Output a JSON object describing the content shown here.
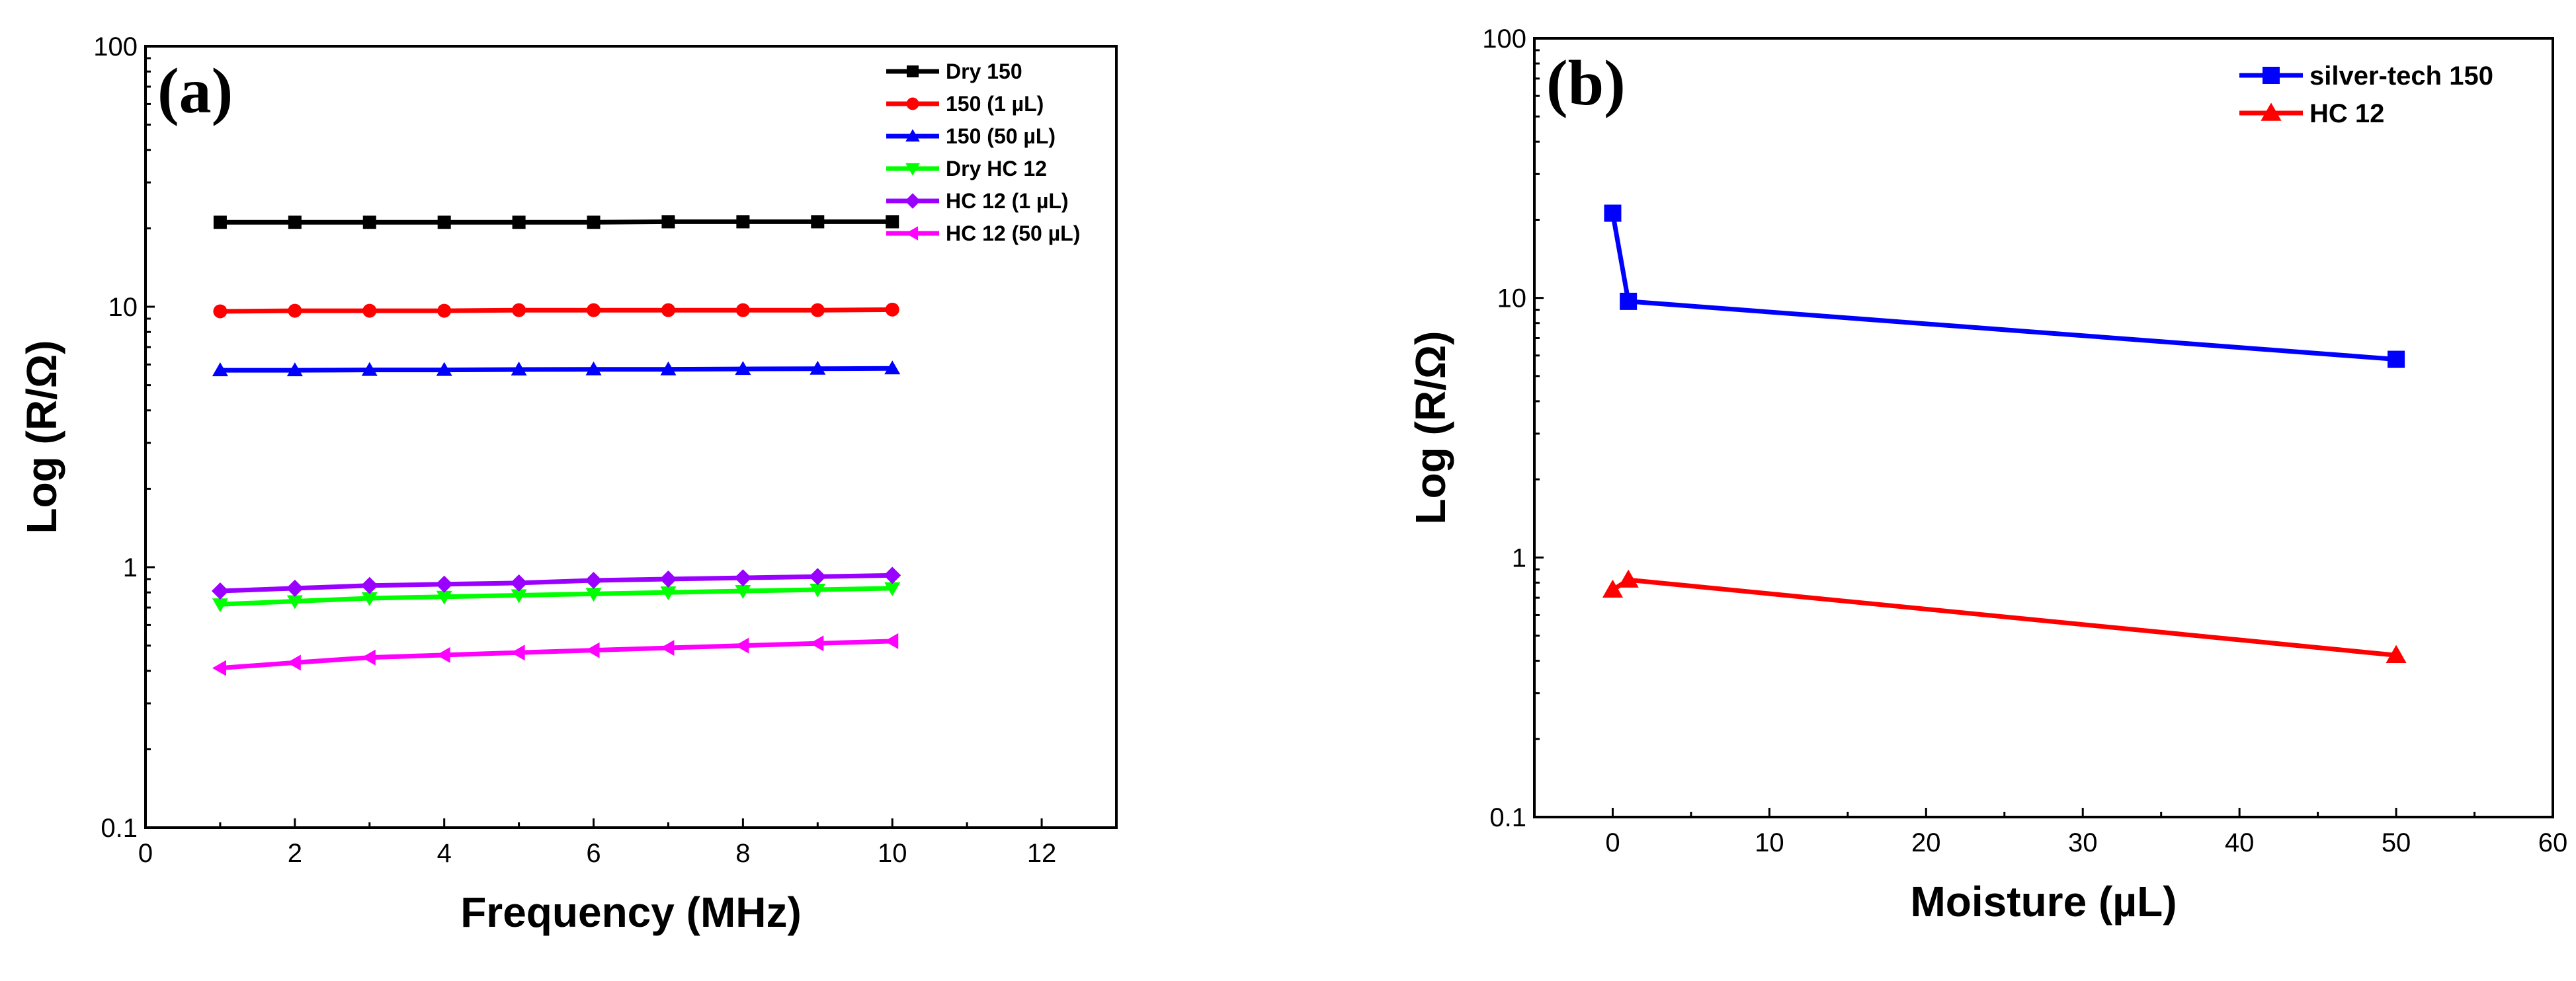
{
  "chart_data": [
    {
      "panel_label": "(a)",
      "type": "line",
      "xlabel": "Frequency (MHz)",
      "ylabel": "Log (R/Ω)",
      "xlim": [
        0,
        13
      ],
      "xticks": [
        0,
        2,
        4,
        6,
        8,
        10,
        12
      ],
      "xtick_labels": [
        "0",
        "2",
        "4",
        "6",
        "8",
        "10",
        "12"
      ],
      "yscale": "log",
      "ylim": [
        0.1,
        100
      ],
      "yticks": [
        0.1,
        1,
        10,
        100
      ],
      "ytick_labels": [
        "0.1",
        "1",
        "10",
        "100"
      ],
      "legend_position": "top-right",
      "x": [
        1,
        2,
        3,
        4,
        5,
        6,
        7,
        8,
        9,
        10
      ],
      "series": [
        {
          "name": "Dry 150",
          "color": "#000000",
          "marker": "square",
          "values": [
            21.1,
            21.1,
            21.1,
            21.1,
            21.1,
            21.1,
            21.2,
            21.2,
            21.2,
            21.2
          ]
        },
        {
          "name": "150 (1 µL)",
          "color": "#ff0000",
          "marker": "circle",
          "values": [
            9.6,
            9.65,
            9.65,
            9.65,
            9.7,
            9.7,
            9.7,
            9.7,
            9.7,
            9.75
          ]
        },
        {
          "name": "150 (50 µL)",
          "color": "#0000ff",
          "marker": "triangle-up",
          "values": [
            5.7,
            5.7,
            5.72,
            5.72,
            5.74,
            5.75,
            5.75,
            5.77,
            5.78,
            5.8
          ]
        },
        {
          "name": "Dry HC 12",
          "color": "#00ff00",
          "marker": "triangle-down",
          "values": [
            0.72,
            0.74,
            0.76,
            0.77,
            0.78,
            0.79,
            0.8,
            0.81,
            0.82,
            0.83
          ]
        },
        {
          "name": "HC 12 (1 µL)",
          "color": "#9900ff",
          "marker": "diamond",
          "values": [
            0.81,
            0.83,
            0.85,
            0.86,
            0.87,
            0.89,
            0.9,
            0.91,
            0.92,
            0.93
          ]
        },
        {
          "name": "HC 12 (50 µL)",
          "color": "#ff00ff",
          "marker": "triangle-left",
          "values": [
            0.41,
            0.43,
            0.45,
            0.46,
            0.47,
            0.48,
            0.49,
            0.5,
            0.51,
            0.52
          ]
        }
      ]
    },
    {
      "panel_label": "(b)",
      "type": "line",
      "xlabel": "Moisture (µL)",
      "ylabel": "Log (R/Ω)",
      "xlim": [
        -5,
        60
      ],
      "xticks": [
        0,
        10,
        20,
        30,
        40,
        50,
        60
      ],
      "xtick_labels": [
        "0",
        "10",
        "20",
        "30",
        "40",
        "50",
        "60"
      ],
      "yscale": "log",
      "ylim": [
        0.1,
        100
      ],
      "yticks": [
        0.1,
        1,
        10,
        100
      ],
      "ytick_labels": [
        "0.1",
        "1",
        "10",
        "100"
      ],
      "legend_position": "top-right",
      "series": [
        {
          "name": "silver-tech 150",
          "color": "#0000ff",
          "marker": "square",
          "x": [
            0,
            1,
            50
          ],
          "values": [
            21.2,
            9.7,
            5.8
          ]
        },
        {
          "name": "HC 12",
          "color": "#ff0000",
          "marker": "triangle-up",
          "x": [
            0,
            1,
            50
          ],
          "values": [
            0.75,
            0.82,
            0.42
          ]
        }
      ]
    }
  ]
}
